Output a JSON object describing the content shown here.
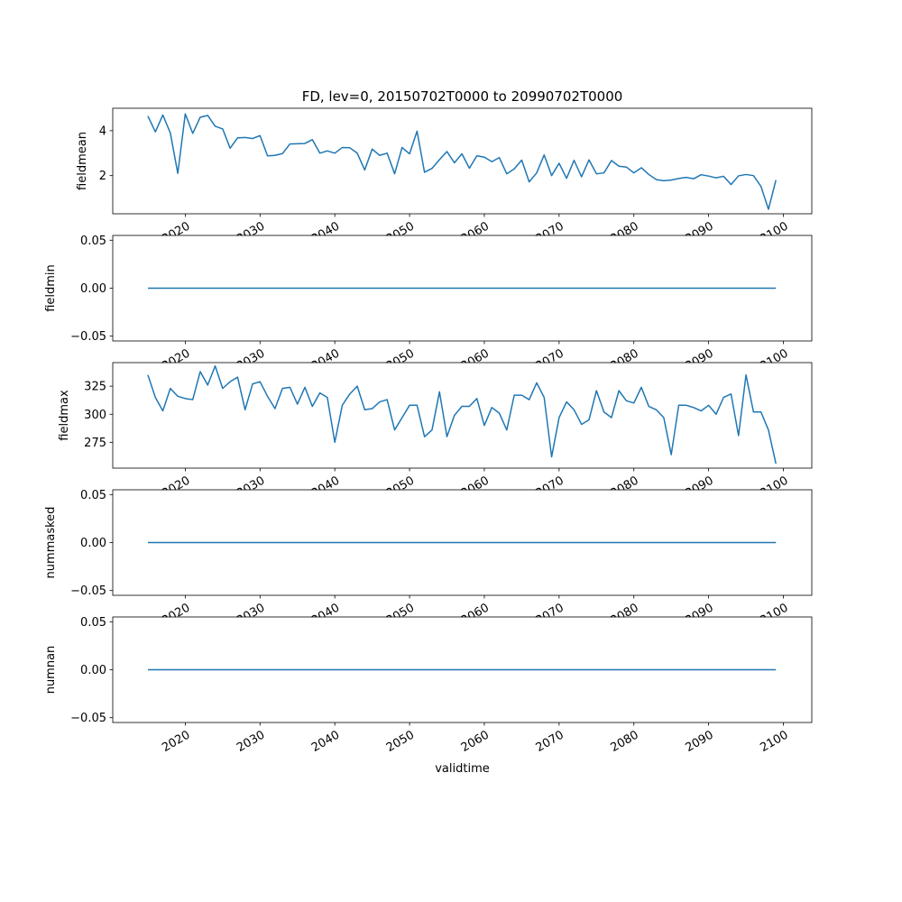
{
  "title": "FD, lev=0, 20150702T0000 to 20990702T0000",
  "xlabel": "validtime",
  "colors": {
    "line": "#1f77b4",
    "axes": "#000000",
    "background": "#ffffff"
  },
  "chart_data": [
    {
      "type": "line",
      "ylabel": "fieldmean",
      "xlim": [
        2010.3,
        2103.8
      ],
      "ylim": [
        0.3,
        5.0
      ],
      "yticks": [
        2,
        4
      ],
      "ytick_labels": [
        "2",
        "4"
      ],
      "xticks": [
        2020,
        2030,
        2040,
        2050,
        2060,
        2070,
        2080,
        2090,
        2100
      ],
      "xtick_labels": [
        "2020",
        "2030",
        "2040",
        "2050",
        "2060",
        "2070",
        "2080",
        "2090",
        "2100"
      ],
      "series": [
        {
          "x": [
            2015,
            2016,
            2017,
            2018,
            2019,
            2020,
            2021,
            2022,
            2023,
            2024,
            2025,
            2026,
            2027,
            2028,
            2029,
            2030,
            2031,
            2032,
            2033,
            2034,
            2035,
            2036,
            2037,
            2038,
            2039,
            2040,
            2041,
            2042,
            2043,
            2044,
            2045,
            2046,
            2047,
            2048,
            2049,
            2050,
            2051,
            2052,
            2053,
            2054,
            2055,
            2056,
            2057,
            2058,
            2059,
            2060,
            2061,
            2062,
            2063,
            2064,
            2065,
            2066,
            2067,
            2068,
            2069,
            2070,
            2071,
            2072,
            2073,
            2074,
            2075,
            2076,
            2077,
            2078,
            2079,
            2080,
            2081,
            2082,
            2083,
            2084,
            2085,
            2086,
            2087,
            2088,
            2089,
            2090,
            2091,
            2092,
            2093,
            2094,
            2095,
            2096,
            2097,
            2098,
            2099
          ],
          "values": [
            4.65,
            3.95,
            4.7,
            3.9,
            2.1,
            4.75,
            3.88,
            4.6,
            4.68,
            4.2,
            4.08,
            3.22,
            3.68,
            3.7,
            3.65,
            3.78,
            2.88,
            2.9,
            2.98,
            3.41,
            3.42,
            3.43,
            3.6,
            3.0,
            3.1,
            3.0,
            3.25,
            3.24,
            3.0,
            2.25,
            3.18,
            2.9,
            3.0,
            2.08,
            3.25,
            2.97,
            3.98,
            2.15,
            2.32,
            2.71,
            3.07,
            2.57,
            2.97,
            2.33,
            2.88,
            2.82,
            2.62,
            2.8,
            2.08,
            2.3,
            2.69,
            1.72,
            2.12,
            2.92,
            2.0,
            2.55,
            1.88,
            2.68,
            1.95,
            2.7,
            2.08,
            2.12,
            2.67,
            2.42,
            2.38,
            2.12,
            2.35,
            2.05,
            1.82,
            1.77,
            1.8,
            1.87,
            1.92,
            1.86,
            2.04,
            1.98,
            1.9,
            1.97,
            1.6,
            1.99,
            2.05,
            2.0,
            1.52,
            0.5,
            1.8
          ]
        }
      ]
    },
    {
      "type": "line",
      "ylabel": "fieldmin",
      "xlim": [
        2010.3,
        2103.8
      ],
      "ylim": [
        -0.055,
        0.055
      ],
      "yticks": [
        -0.05,
        0.0,
        0.05
      ],
      "ytick_labels": [
        "−0.05",
        "0.00",
        "0.05"
      ],
      "xticks": [
        2020,
        2030,
        2040,
        2050,
        2060,
        2070,
        2080,
        2090,
        2100
      ],
      "xtick_labels": [
        "2020",
        "2030",
        "2040",
        "2050",
        "2060",
        "2070",
        "2080",
        "2090",
        "2100"
      ],
      "series": [
        {
          "x": [
            2015,
            2099
          ],
          "values": [
            0,
            0
          ]
        }
      ]
    },
    {
      "type": "line",
      "ylabel": "fieldmax",
      "xlim": [
        2010.3,
        2103.8
      ],
      "ylim": [
        252,
        346
      ],
      "yticks": [
        275,
        300,
        325
      ],
      "ytick_labels": [
        "275",
        "300",
        "325"
      ],
      "xticks": [
        2020,
        2030,
        2040,
        2050,
        2060,
        2070,
        2080,
        2090,
        2100
      ],
      "xtick_labels": [
        "2020",
        "2030",
        "2040",
        "2050",
        "2060",
        "2070",
        "2080",
        "2090",
        "2100"
      ],
      "series": [
        {
          "x": [
            2015,
            2016,
            2017,
            2018,
            2019,
            2020,
            2021,
            2022,
            2023,
            2024,
            2025,
            2026,
            2027,
            2028,
            2029,
            2030,
            2031,
            2032,
            2033,
            2034,
            2035,
            2036,
            2037,
            2038,
            2039,
            2040,
            2041,
            2042,
            2043,
            2044,
            2045,
            2046,
            2047,
            2048,
            2049,
            2050,
            2051,
            2052,
            2053,
            2054,
            2055,
            2056,
            2057,
            2058,
            2059,
            2060,
            2061,
            2062,
            2063,
            2064,
            2065,
            2066,
            2067,
            2068,
            2069,
            2070,
            2071,
            2072,
            2073,
            2074,
            2075,
            2076,
            2077,
            2078,
            2079,
            2080,
            2081,
            2082,
            2083,
            2084,
            2085,
            2086,
            2087,
            2088,
            2089,
            2090,
            2091,
            2092,
            2093,
            2094,
            2095,
            2096,
            2097,
            2098,
            2099
          ],
          "values": [
            335,
            315,
            303,
            323,
            316,
            314,
            313,
            338,
            326,
            343,
            323,
            329,
            333,
            304,
            327,
            329,
            316,
            305,
            323,
            324,
            309,
            324,
            307,
            319,
            315,
            275,
            308,
            318,
            325,
            304,
            305,
            311,
            313,
            286,
            297,
            308,
            308,
            280,
            286,
            320,
            280,
            299,
            307,
            307,
            314,
            290,
            306,
            301,
            286,
            317,
            317,
            313,
            328,
            315,
            262,
            297,
            311,
            304,
            291,
            295,
            321,
            302,
            297,
            321,
            312,
            310,
            324,
            307,
            304,
            297,
            264,
            308,
            308,
            306,
            303,
            308,
            300,
            315,
            318,
            281,
            335,
            302,
            302,
            286,
            256
          ]
        }
      ]
    },
    {
      "type": "line",
      "ylabel": "nummasked",
      "xlim": [
        2010.3,
        2103.8
      ],
      "ylim": [
        -0.055,
        0.055
      ],
      "yticks": [
        -0.05,
        0.0,
        0.05
      ],
      "ytick_labels": [
        "−0.05",
        "0.00",
        "0.05"
      ],
      "xticks": [
        2020,
        2030,
        2040,
        2050,
        2060,
        2070,
        2080,
        2090,
        2100
      ],
      "xtick_labels": [
        "2020",
        "2030",
        "2040",
        "2050",
        "2060",
        "2070",
        "2080",
        "2090",
        "2100"
      ],
      "series": [
        {
          "x": [
            2015,
            2099
          ],
          "values": [
            0,
            0
          ]
        }
      ]
    },
    {
      "type": "line",
      "ylabel": "numnan",
      "xlim": [
        2010.3,
        2103.8
      ],
      "ylim": [
        -0.055,
        0.055
      ],
      "yticks": [
        -0.05,
        0.0,
        0.05
      ],
      "ytick_labels": [
        "−0.05",
        "0.00",
        "0.05"
      ],
      "xticks": [
        2020,
        2030,
        2040,
        2050,
        2060,
        2070,
        2080,
        2090,
        2100
      ],
      "xtick_labels": [
        "2020",
        "2030",
        "2040",
        "2050",
        "2060",
        "2070",
        "2080",
        "2090",
        "2100"
      ],
      "series": [
        {
          "x": [
            2015,
            2099
          ],
          "values": [
            0,
            0
          ]
        }
      ]
    }
  ]
}
